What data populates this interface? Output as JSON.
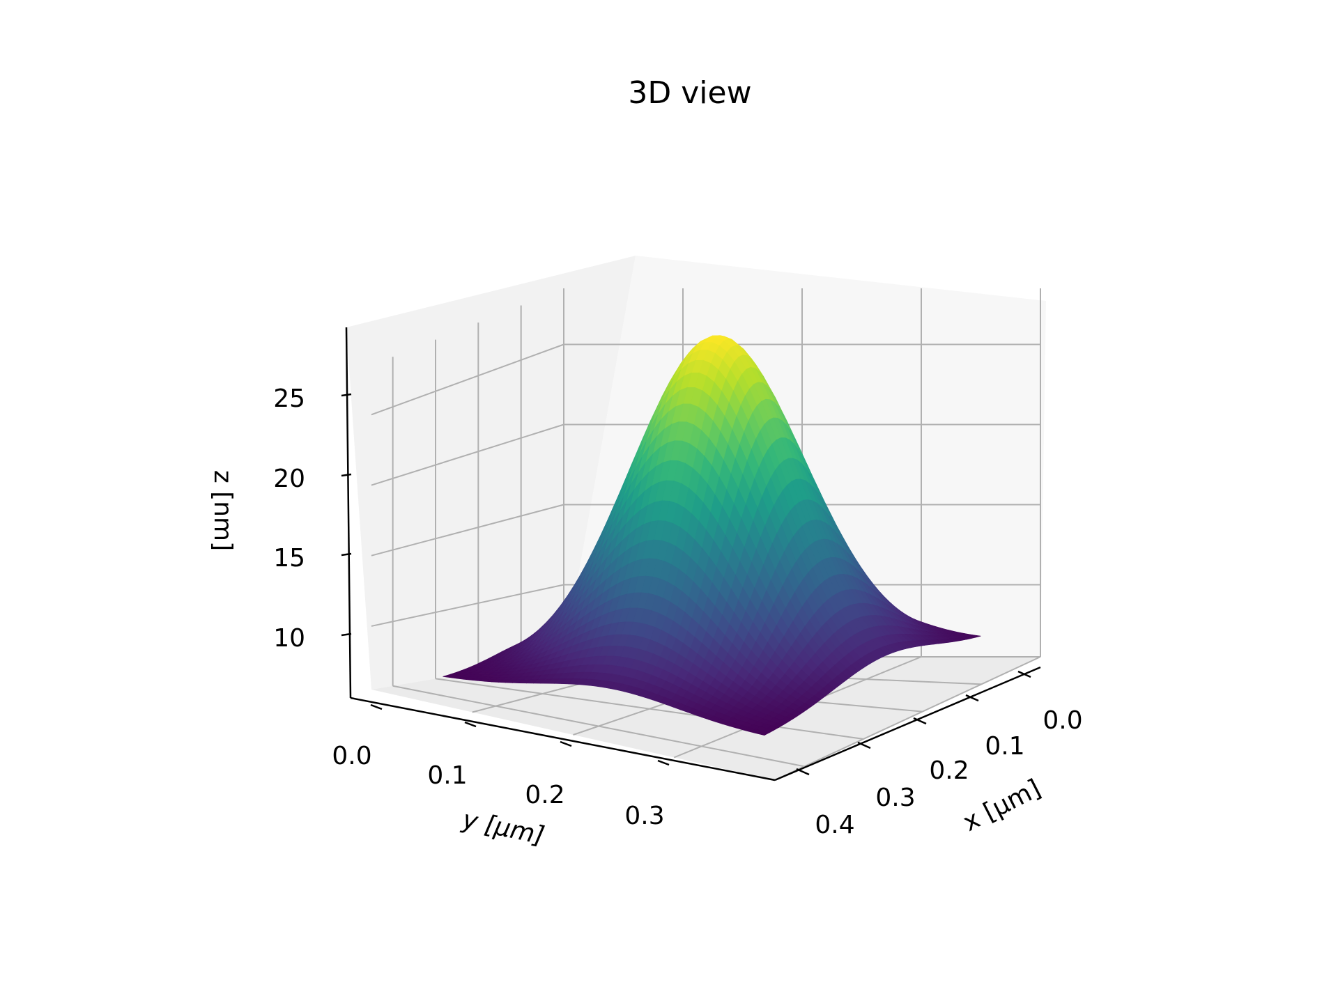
{
  "chart_data": {
    "type": "surface3d",
    "title": "3D view",
    "xlabel": "x [μm]",
    "ylabel": "y [μm]",
    "zlabel": "z [nm]",
    "x_ticks": [
      "0.0",
      "0.1",
      "0.2",
      "0.3",
      "0.4"
    ],
    "y_ticks": [
      "0.0",
      "0.1",
      "0.2",
      "0.3"
    ],
    "z_ticks": [
      "10",
      "15",
      "20",
      "25"
    ],
    "xlim": [
      0.0,
      0.45
    ],
    "ylim": [
      0.0,
      0.4
    ],
    "zlim": [
      5.5,
      28.5
    ],
    "grid": true,
    "colormap": "viridis",
    "surface": {
      "shape": "single rounded peak",
      "peak_center": {
        "x": 0.17,
        "y": 0.2
      },
      "peak_height": 28.4,
      "base_height": 6.5,
      "shoulder": {
        "x": 0.02,
        "y": 0.27,
        "height": 9.5
      }
    }
  }
}
